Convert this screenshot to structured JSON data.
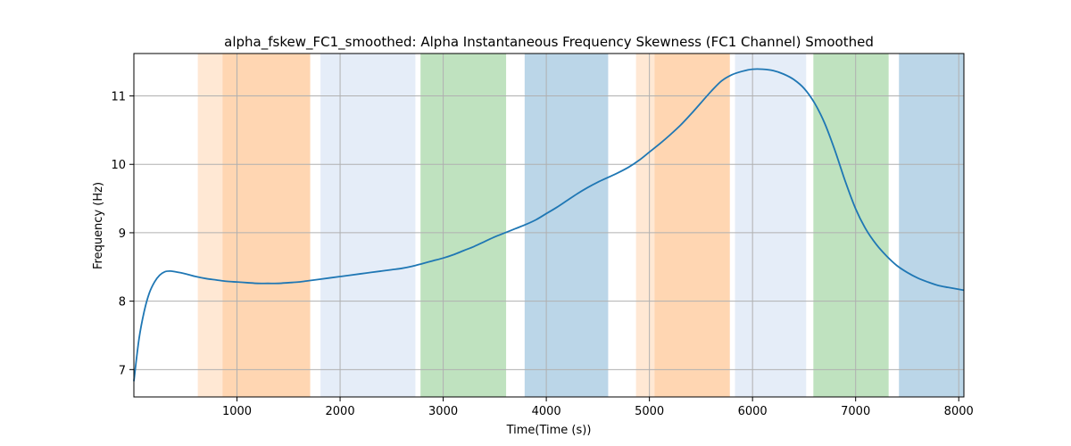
{
  "chart_data": {
    "type": "line",
    "title": "alpha_fskew_FC1_smoothed: Alpha Instantaneous Frequency Skewness (FC1 Channel) Smoothed",
    "xlabel": "Time(Time (s))",
    "ylabel": "Frequency (Hz)",
    "xlim": [
      0,
      8050
    ],
    "ylim": [
      6.6,
      11.62
    ],
    "xticks": [
      1000,
      2000,
      3000,
      4000,
      5000,
      6000,
      7000,
      8000
    ],
    "yticks": [
      7,
      8,
      9,
      10,
      11
    ],
    "grid": true,
    "series": [
      {
        "color": "#1f77b4",
        "x": [
          0,
          50,
          100,
          150,
          200,
          250,
          300,
          350,
          400,
          500,
          600,
          700,
          800,
          900,
          1000,
          1100,
          1200,
          1300,
          1400,
          1500,
          1600,
          1700,
          1800,
          1900,
          2000,
          2100,
          2200,
          2300,
          2400,
          2500,
          2600,
          2700,
          2800,
          2900,
          3000,
          3100,
          3200,
          3300,
          3400,
          3500,
          3600,
          3700,
          3800,
          3900,
          4000,
          4100,
          4200,
          4300,
          4400,
          4500,
          4600,
          4700,
          4800,
          4900,
          5000,
          5100,
          5200,
          5300,
          5400,
          5500,
          5600,
          5700,
          5800,
          5900,
          6000,
          6100,
          6200,
          6300,
          6400,
          6500,
          6600,
          6700,
          6800,
          6900,
          7000,
          7100,
          7200,
          7300,
          7400,
          7500,
          7600,
          7700,
          7800,
          7900,
          8050
        ],
        "y": [
          6.83,
          7.45,
          7.85,
          8.12,
          8.28,
          8.38,
          8.43,
          8.44,
          8.43,
          8.4,
          8.36,
          8.33,
          8.31,
          8.29,
          8.28,
          8.27,
          8.26,
          8.26,
          8.26,
          8.27,
          8.28,
          8.3,
          8.32,
          8.34,
          8.36,
          8.38,
          8.4,
          8.42,
          8.44,
          8.46,
          8.48,
          8.51,
          8.55,
          8.59,
          8.63,
          8.68,
          8.74,
          8.8,
          8.87,
          8.94,
          9.0,
          9.06,
          9.12,
          9.19,
          9.28,
          9.37,
          9.47,
          9.57,
          9.66,
          9.74,
          9.81,
          9.88,
          9.96,
          10.06,
          10.18,
          10.3,
          10.43,
          10.57,
          10.73,
          10.9,
          11.07,
          11.22,
          11.31,
          11.36,
          11.39,
          11.39,
          11.37,
          11.32,
          11.24,
          11.11,
          10.9,
          10.6,
          10.2,
          9.75,
          9.35,
          9.05,
          8.83,
          8.66,
          8.52,
          8.42,
          8.34,
          8.28,
          8.23,
          8.2,
          8.16
        ]
      }
    ],
    "bands": [
      {
        "start": 620,
        "end": 860,
        "color": "#ff7f0e",
        "opacity": 0.18
      },
      {
        "start": 860,
        "end": 1710,
        "color": "#ff7f0e",
        "opacity": 0.32
      },
      {
        "start": 1810,
        "end": 2730,
        "color": "#aec7e8",
        "opacity": 0.32
      },
      {
        "start": 2780,
        "end": 3610,
        "color": "#2ca02c",
        "opacity": 0.3
      },
      {
        "start": 3790,
        "end": 4600,
        "color": "#1f77b4",
        "opacity": 0.3
      },
      {
        "start": 4870,
        "end": 5050,
        "color": "#ff7f0e",
        "opacity": 0.18
      },
      {
        "start": 5050,
        "end": 5780,
        "color": "#ff7f0e",
        "opacity": 0.32
      },
      {
        "start": 5830,
        "end": 6520,
        "color": "#aec7e8",
        "opacity": 0.32
      },
      {
        "start": 6590,
        "end": 7320,
        "color": "#2ca02c",
        "opacity": 0.3
      },
      {
        "start": 7420,
        "end": 8050,
        "color": "#1f77b4",
        "opacity": 0.3
      }
    ]
  }
}
